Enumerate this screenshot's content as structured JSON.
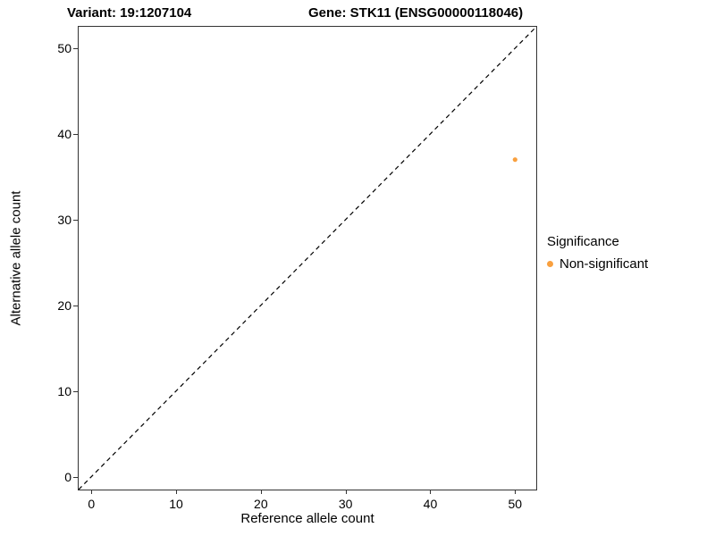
{
  "chart_data": {
    "type": "scatter",
    "titles": [
      "Variant: 19:1207104",
      "Gene: STK11 (ENSG00000118046)"
    ],
    "xlabel": "Reference allele count",
    "ylabel": "Alternative allele count",
    "xlim": [
      -1.5,
      52.5
    ],
    "ylim": [
      -1.5,
      52.5
    ],
    "x_ticks": [
      0,
      10,
      20,
      30,
      40,
      50
    ],
    "y_ticks": [
      0,
      10,
      20,
      30,
      40,
      50
    ],
    "grid": false,
    "points": [
      {
        "x": 50,
        "y": 37,
        "label": "Non-significant",
        "color": "#F9A03F"
      }
    ],
    "reference_line": {
      "kind": "identity",
      "style": "dashed",
      "color": "#000000"
    },
    "legend": {
      "title": "Significance",
      "position": "right",
      "entries": [
        {
          "label": "Non-significant",
          "color": "#F9A03F"
        }
      ]
    }
  }
}
